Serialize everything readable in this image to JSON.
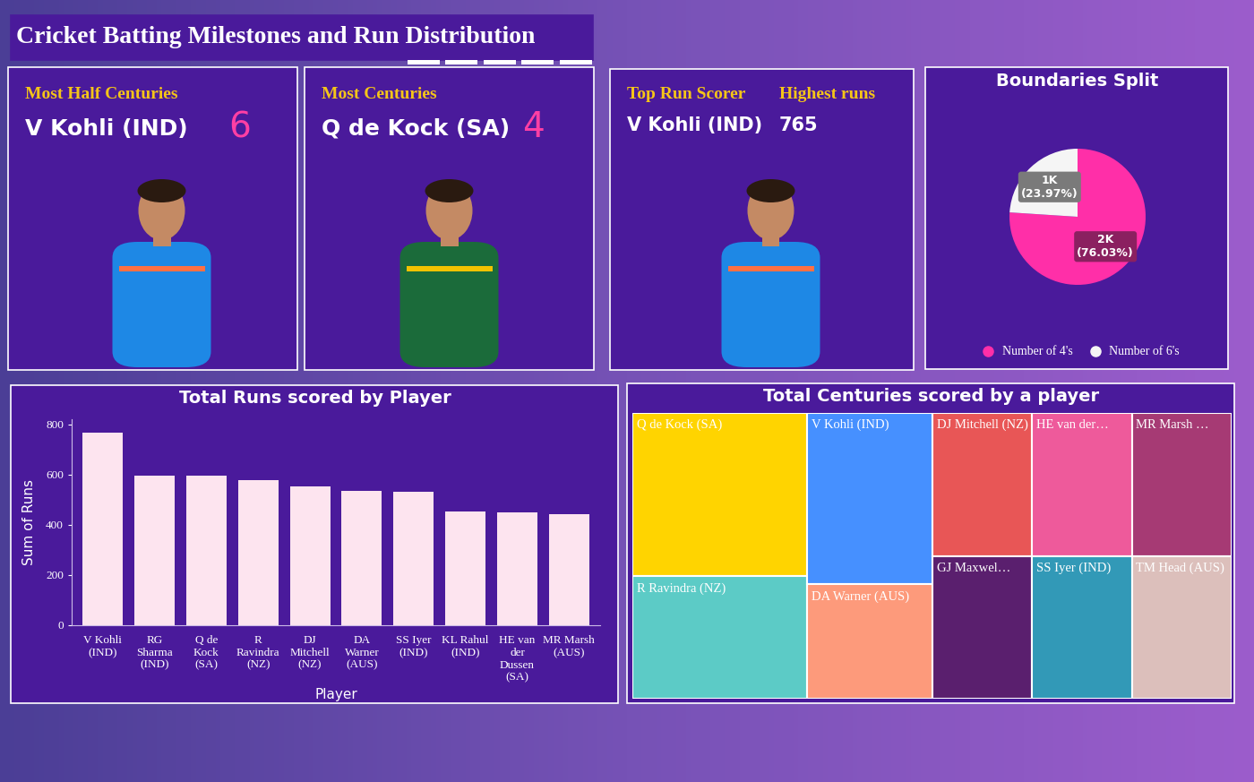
{
  "title": "Cricket Batting Milestones and Run Distribution",
  "cards": [
    {
      "label": "Most Half Centuries",
      "name": "V Kohli (IND)",
      "value": 6
    },
    {
      "label": "Most Centuries",
      "name": "Q de Kock (SA)",
      "value": 4
    },
    {
      "label": "Top Run Scorer",
      "name": "V Kohli (IND)",
      "value_label": "Highest runs",
      "value": 765
    }
  ],
  "chart_data": [
    {
      "type": "pie",
      "title": "Boundaries Split",
      "categories": [
        "Number of 4's",
        "Number of 6's"
      ],
      "values": [
        2074,
        654
      ],
      "value_labels": [
        "2K\n(76.03%)",
        "1K\n(23.97%)"
      ],
      "colors": [
        "#ff2fa8",
        "#f5f5f5"
      ],
      "legend": "bottom",
      "data_labels": true
    },
    {
      "type": "bar",
      "title": "Total Runs scored by Player",
      "x_label": "Player",
      "y_label": "Sum of Runs",
      "categories": [
        "V Kohli (IND)",
        "RG Sharma (IND)",
        "Q de Kock (SA)",
        "R Ravindra (NZ)",
        "DJ Mitchell (NZ)",
        "DA Warner (AUS)",
        "SS Iyer (IND)",
        "KL Rahul (IND)",
        "HE van der Dussen (SA)",
        "MR Marsh (AUS)"
      ],
      "values": [
        765,
        597,
        594,
        578,
        552,
        535,
        530,
        452,
        448,
        441
      ],
      "color": "#fde4ef",
      "ylim": [
        0,
        820
      ],
      "yticks": [
        0,
        200,
        400,
        600,
        800
      ]
    },
    {
      "type": "treemap",
      "title": "Total Centuries scored by a player",
      "categories": [
        "Q de Kock (SA)",
        "R Ravindra (NZ)",
        "V Kohli (IND)",
        "DA Warner (AUS)",
        "DJ Mitchell (NZ)",
        "GJ Maxwel…",
        "HE van der…",
        "MR Marsh …",
        "SS Iyer (IND)",
        "TM Head (AUS)"
      ],
      "values": [
        4,
        3,
        3,
        2,
        2,
        2,
        2,
        2,
        2,
        2
      ],
      "colors": [
        "#ffd400",
        "#5ccbc6",
        "#4690ff",
        "#fd9a7b",
        "#e85656",
        "#5a1f6e",
        "#ee5a9b",
        "#a63a74",
        "#3299b7",
        "#dcbfbb"
      ]
    }
  ]
}
